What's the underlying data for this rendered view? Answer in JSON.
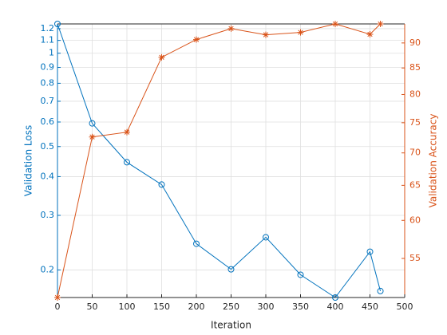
{
  "chart_data": {
    "type": "line",
    "x_label": "Iteration",
    "y_label": "Validation Loss",
    "y2_label": "Validation Accuracy",
    "x": [
      0,
      50,
      100,
      150,
      200,
      250,
      300,
      350,
      400,
      450,
      465
    ],
    "series": [
      {
        "name": "Validation Loss",
        "color": "#0072BD",
        "marker": "circle",
        "axis": "y",
        "values": [
          1.243,
          0.594,
          0.445,
          0.377,
          0.243,
          0.201,
          0.255,
          0.193,
          0.163,
          0.229,
          0.171
        ]
      },
      {
        "name": "Validation Accuracy",
        "color": "#D95319",
        "marker": "asterisk",
        "axis": "y2",
        "values": [
          50.3,
          72.6,
          73.4,
          87.1,
          90.7,
          93.0,
          91.7,
          92.2,
          94.0,
          91.8,
          94.0
        ]
      }
    ],
    "xlim": [
      0,
      500
    ],
    "xticks": [
      0,
      50,
      100,
      150,
      200,
      250,
      300,
      350,
      400,
      450,
      500
    ],
    "ylim": [
      0.163,
      1.243
    ],
    "yscale": "log",
    "yticks": [
      0.2,
      0.3,
      0.4,
      0.5,
      0.6,
      0.7,
      0.8,
      0.9,
      1,
      1.1,
      1.2
    ],
    "y2lim": [
      50.3,
      94.0
    ],
    "y2scale": "log",
    "y2ticks": [
      55,
      60,
      65,
      70,
      75,
      80,
      85,
      90
    ],
    "grid": true
  }
}
